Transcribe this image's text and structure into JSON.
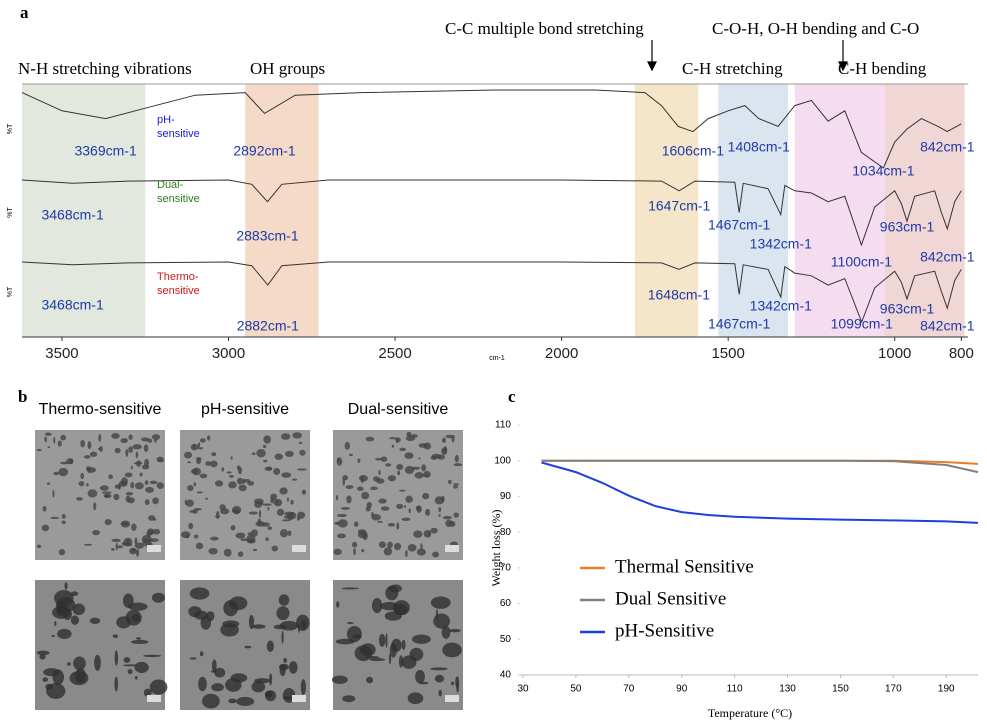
{
  "panel_letters": [
    "a",
    "b",
    "c"
  ],
  "sem_titles": [
    "Thermo-sensitive",
    "pH-sensitive",
    "Dual-sensitive"
  ],
  "chart_data": [
    {
      "type": "line",
      "y_label": "%T",
      "x_label": "cm-1",
      "xlim": [
        3620,
        780
      ],
      "xticks": [
        3500,
        3000,
        2500,
        2000,
        1500,
        1000,
        800
      ],
      "bands": [
        {
          "range": [
            3620,
            3250
          ],
          "color": "#dde4d8"
        },
        {
          "range": [
            2950,
            2730
          ],
          "color": "#f3d3bd"
        },
        {
          "range": [
            1780,
            1590
          ],
          "color": "#f3e2bf"
        },
        {
          "range": [
            1530,
            1320
          ],
          "color": "#d5e1ec"
        },
        {
          "range": [
            1300,
            1030
          ],
          "color": "#f3d7ec"
        },
        {
          "range": [
            1030,
            790
          ],
          "color": "#efcfcf"
        }
      ],
      "band_labels": [
        "N-H stretching  vibrations",
        "OH groups",
        "C-C multiple bond stretching",
        "C-H stretching",
        "C-O-H, O-H bending and C-O",
        "C-H bending"
      ],
      "series": [
        {
          "name": "pH-sensitive",
          "color": "#333333",
          "label_color": "#1a1adb",
          "x": [
            3620,
            3500,
            3369,
            3250,
            3100,
            2950,
            2892,
            2800,
            2600,
            2200,
            1900,
            1750,
            1700,
            1650,
            1606,
            1560,
            1500,
            1450,
            1408,
            1350,
            1300,
            1250,
            1200,
            1150,
            1100,
            1034,
            1000,
            963,
            920,
            870,
            842,
            800
          ],
          "values": [
            98,
            84,
            78,
            86,
            96,
            98,
            82,
            96,
            98,
            100,
            100,
            98,
            88,
            72,
            68,
            78,
            84,
            88,
            78,
            72,
            88,
            92,
            76,
            84,
            52,
            40,
            60,
            70,
            78,
            72,
            68,
            74
          ]
        },
        {
          "name": "Dual-sensitive",
          "color": "#333333",
          "label_color": "#2e7d1f",
          "x": [
            3620,
            3468,
            3300,
            3000,
            2930,
            2883,
            2840,
            2700,
            2000,
            1700,
            1647,
            1600,
            1480,
            1467,
            1455,
            1380,
            1342,
            1330,
            1300,
            1250,
            1200,
            1150,
            1100,
            1060,
            1000,
            980,
            963,
            940,
            880,
            860,
            842,
            820,
            800
          ],
          "values": [
            100,
            97,
            99,
            100,
            96,
            80,
            96,
            100,
            100,
            99,
            90,
            99,
            98,
            70,
            97,
            92,
            68,
            95,
            90,
            88,
            80,
            85,
            40,
            75,
            90,
            78,
            62,
            85,
            90,
            70,
            55,
            80,
            90
          ]
        },
        {
          "name": "Thermo-sensitive",
          "color": "#333333",
          "label_color": "#d01818",
          "x": [
            3620,
            3468,
            3300,
            3000,
            2930,
            2882,
            2840,
            2700,
            2000,
            1700,
            1648,
            1600,
            1480,
            1467,
            1455,
            1380,
            1342,
            1330,
            1300,
            1250,
            1200,
            1150,
            1099,
            1060,
            1000,
            980,
            963,
            940,
            880,
            860,
            842,
            820,
            800
          ],
          "values": [
            100,
            97,
            99,
            100,
            96,
            75,
            96,
            100,
            100,
            99,
            92,
            99,
            98,
            65,
            97,
            92,
            62,
            95,
            88,
            85,
            75,
            82,
            35,
            72,
            90,
            78,
            60,
            85,
            90,
            68,
            50,
            80,
            92
          ]
        }
      ],
      "annotations": [
        {
          "x": 3369,
          "label": "3369cm-1"
        },
        {
          "x": 2892,
          "label": "2892cm-1"
        },
        {
          "x": 1606,
          "label": "1606cm-1"
        },
        {
          "x": 1408,
          "label": "1408cm-1"
        },
        {
          "x": 1034,
          "label": "1034cm-1"
        },
        {
          "x": 842,
          "label": "842cm-1"
        },
        {
          "x": 3468,
          "label": "3468cm-1"
        },
        {
          "x": 2883,
          "label": "2883cm-1"
        },
        {
          "x": 1647,
          "label": "1647cm-1"
        },
        {
          "x": 1467,
          "label": "1467cm-1"
        },
        {
          "x": 1342,
          "label": "1342cm-1"
        },
        {
          "x": 1100,
          "label": "1100cm-1"
        },
        {
          "x": 963,
          "label": "963cm-1"
        },
        {
          "x": 842,
          "label": "842cm-1"
        },
        {
          "x": 3468,
          "label": "3468cm-1"
        },
        {
          "x": 2882,
          "label": "2882cm-1"
        },
        {
          "x": 1648,
          "label": "1648cm-1"
        },
        {
          "x": 1467,
          "label": "1467cm-1"
        },
        {
          "x": 1342,
          "label": "1342cm-1"
        },
        {
          "x": 1099,
          "label": "1099cm-1"
        },
        {
          "x": 963,
          "label": "963cm-1"
        },
        {
          "x": 842,
          "label": "842cm-1"
        }
      ]
    },
    {
      "type": "line",
      "x_label": "Temperature (°C)",
      "y_label": "Weight loss (%)",
      "xlim": [
        30,
        202
      ],
      "xticks": [
        30,
        50,
        70,
        90,
        110,
        130,
        150,
        170,
        190
      ],
      "ylim": [
        40,
        110
      ],
      "yticks": [
        40,
        50,
        60,
        70,
        80,
        90,
        100,
        110
      ],
      "legend": "center-left",
      "x": [
        37,
        50,
        60,
        70,
        80,
        90,
        100,
        110,
        130,
        150,
        170,
        190,
        202
      ],
      "series": [
        {
          "name": "Thermal Sensitive",
          "color": "#f07b25",
          "values": [
            100,
            100,
            100,
            100,
            100,
            100,
            100,
            100,
            100,
            100,
            100,
            99.6,
            99.1
          ]
        },
        {
          "name": "Dual Sensitive",
          "color": "#808080",
          "values": [
            100,
            100,
            100,
            100,
            100,
            100,
            100,
            100,
            100,
            100,
            99.9,
            98.8,
            96.8
          ]
        },
        {
          "name": "pH-Sensitive",
          "color": "#1f3fe0",
          "values": [
            99.5,
            96.8,
            93.8,
            90.2,
            87.3,
            85.6,
            84.8,
            84.3,
            83.8,
            83.5,
            83.3,
            83,
            82.6
          ]
        }
      ]
    }
  ]
}
